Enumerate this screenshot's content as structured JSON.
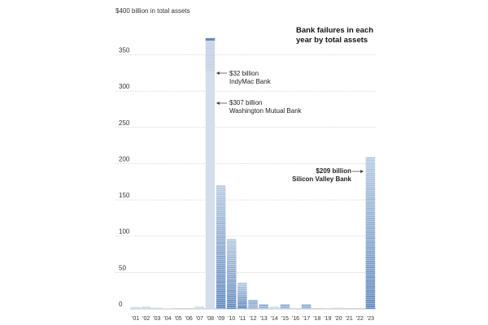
{
  "chart_data": {
    "type": "bar",
    "title": "Bank failures in each year by total assets",
    "title_line1": "Bank failures in each",
    "title_line2": "year by total assets",
    "ylabel": "$400 billion in total assets",
    "ylim": [
      0,
      400
    ],
    "yticks": [
      0,
      50,
      100,
      150,
      200,
      250,
      300,
      350
    ],
    "categories": [
      "'01",
      "'02",
      "'03",
      "'04",
      "'05",
      "'06",
      "'07",
      "'08",
      "'09",
      "'10",
      "'11",
      "'12",
      "'13",
      "'14",
      "'15",
      "'16",
      "'17",
      "'18",
      "'19",
      "'20",
      "'21",
      "'22",
      "'23"
    ],
    "values": [
      2.5,
      3,
      1.5,
      0.5,
      0,
      0,
      3,
      373,
      170,
      96,
      36,
      12,
      6,
      3,
      6,
      1,
      6,
      0,
      0.3,
      1.5,
      0,
      0,
      209
    ],
    "grid": true,
    "annotations": [
      {
        "value": "$32 billion",
        "name": "IndyMac Bank",
        "category": "'08"
      },
      {
        "value": "$307 billion",
        "name": "Washington Mutual Bank",
        "category": "'08"
      },
      {
        "value": "$209 billion",
        "name": "Silicon Valley Bank",
        "category": "'23"
      }
    ],
    "colors": {
      "bar": "#d3deec",
      "bar_dark": "#5f88bc",
      "stripe": "#ffffff",
      "grid": "#c8c8c8",
      "axis": "#666666"
    }
  }
}
